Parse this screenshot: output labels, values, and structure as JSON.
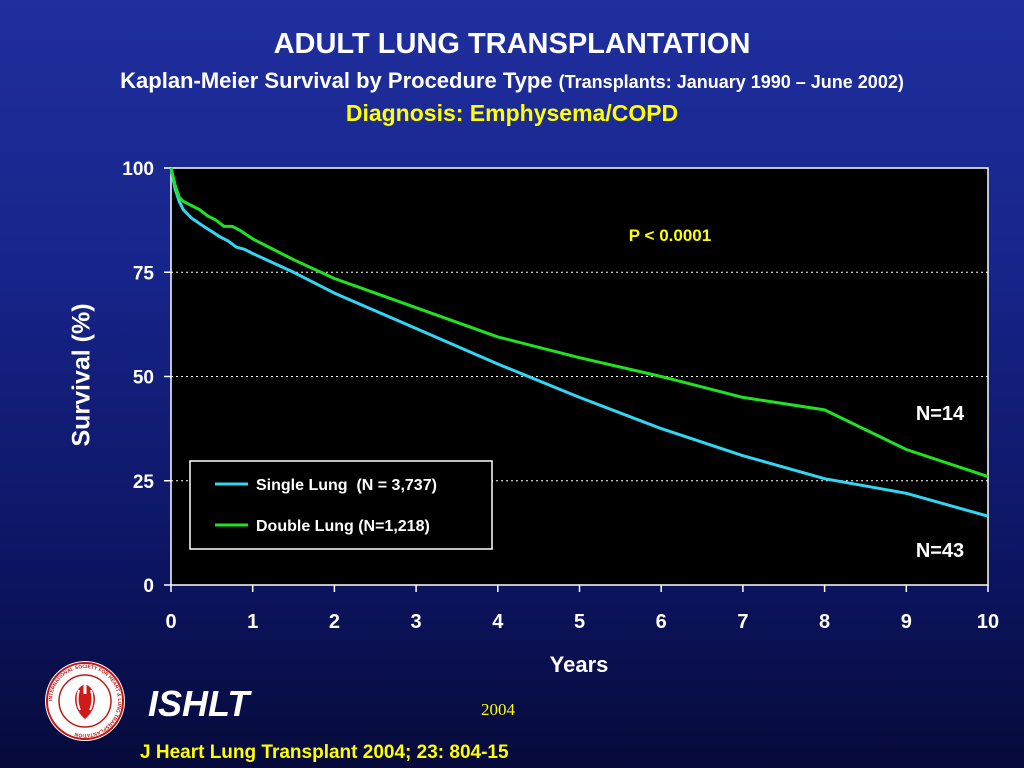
{
  "slide": {
    "title": "ADULT LUNG TRANSPLANTATION",
    "subtitle_main": "Kaplan-Meier Survival by Procedure Type",
    "subtitle_paren": "(Transplants: January 1990 – June 2002)",
    "diagnosis": "Diagnosis: Emphysema/COPD",
    "org": "ISHLT",
    "year": "2004",
    "citation": "J Heart Lung Transplant 2004; 23: 804-15",
    "logo_icon": "ishlt-seal-icon",
    "logo_ring_text": "INTERNATIONAL SOCIETY FOR HEART & LUNG TRANSPLANTATION"
  },
  "chart_data": {
    "type": "line",
    "ylabel": "Survival (%)",
    "xlabel": "Years",
    "xlim": [
      0,
      10
    ],
    "ylim": [
      0,
      100
    ],
    "x_ticks": [
      "0",
      "1",
      "2",
      "3",
      "4",
      "5",
      "6",
      "7",
      "8",
      "9",
      "10"
    ],
    "y_ticks": [
      "0",
      "25",
      "50",
      "75",
      "100"
    ],
    "grid": "dotted horizontal at 25, 50, 75",
    "background": "#000000",
    "legend_position": "lower-left",
    "annotations": {
      "p_value": "P < 0.0001",
      "n_top": "N=14",
      "n_bottom": "N=43"
    },
    "series": [
      {
        "name": "Single Lung  (N = 3,737)",
        "color": "#33d6f2",
        "x": [
          0,
          0.05,
          0.1,
          0.15,
          0.25,
          0.4,
          0.6,
          0.7,
          0.8,
          0.9,
          1,
          1.5,
          2,
          3,
          4,
          5,
          6,
          7,
          8,
          9,
          10
        ],
        "y": [
          100,
          95,
          92,
          90,
          88,
          86,
          83.5,
          82.5,
          81,
          80.5,
          79.5,
          75,
          70,
          61.5,
          53,
          45,
          37.5,
          31,
          25.5,
          22,
          16.5
        ]
      },
      {
        "name": "Double Lung (N=1,218)",
        "color": "#22e022",
        "x": [
          0,
          0.05,
          0.1,
          0.15,
          0.25,
          0.35,
          0.45,
          0.55,
          0.65,
          0.75,
          0.85,
          1,
          1.5,
          2,
          3,
          4,
          5,
          6,
          7,
          8,
          9,
          10
        ],
        "y": [
          100,
          96,
          93,
          92,
          91,
          90,
          88.5,
          87.5,
          86,
          86,
          85,
          83,
          78,
          73.5,
          66.5,
          59.5,
          54.5,
          50,
          45,
          42,
          32.5,
          26
        ]
      }
    ]
  }
}
